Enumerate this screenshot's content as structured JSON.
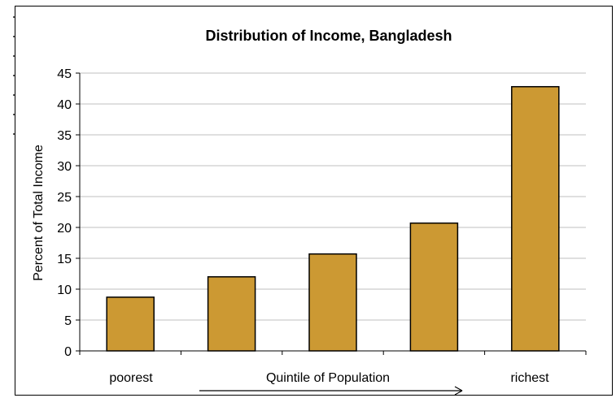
{
  "chart_data": {
    "type": "bar",
    "title": "Distribution of Income, Bangladesh",
    "ylabel": "Percent of Total Income",
    "xlabel": "Quintile of Population",
    "categories": [
      "",
      "",
      "",
      "",
      ""
    ],
    "values": [
      8.7,
      12.0,
      15.7,
      20.7,
      42.8
    ],
    "ylim": [
      0,
      45
    ],
    "yticks": [
      "0",
      "5",
      "10",
      "15",
      "20",
      "25",
      "30",
      "35",
      "40",
      "45"
    ],
    "x_end_labels": {
      "left": "poorest",
      "right": "richest"
    },
    "grid": true,
    "legend": "none",
    "bar_color": "#CC9933",
    "grid_color": "#BFBFBF"
  }
}
